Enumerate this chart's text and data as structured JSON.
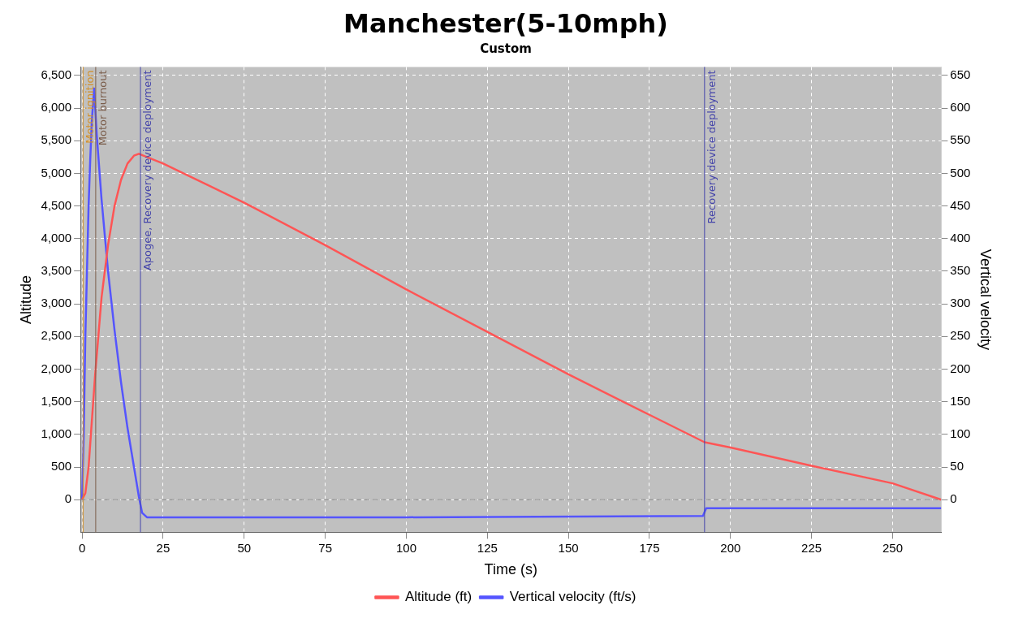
{
  "chart_data": {
    "type": "line",
    "title": "Manchester(5-10mph)",
    "subtitle": "Custom",
    "xlabel": "Time (s)",
    "ylabel": "Altitude",
    "y2label": "Vertical velocity",
    "xlim": [
      -0.5,
      265
    ],
    "xticks": [
      0,
      25,
      50,
      75,
      100,
      125,
      150,
      175,
      200,
      225,
      250
    ],
    "ylim": [
      -500,
      6630
    ],
    "yticks": [
      0,
      500,
      {
        "value": 1000,
        "label": "1,000"
      },
      {
        "value": 1500,
        "label": "1,500"
      },
      {
        "value": 2000,
        "label": "2,000"
      },
      {
        "value": 2500,
        "label": "2,500"
      },
      {
        "value": 3000,
        "label": "3,000"
      },
      {
        "value": 3500,
        "label": "3,500"
      },
      {
        "value": 4000,
        "label": "4,000"
      },
      {
        "value": 4500,
        "label": "4,500"
      },
      {
        "value": 5000,
        "label": "5,000"
      },
      {
        "value": 5500,
        "label": "5,500"
      },
      {
        "value": 6000,
        "label": "6,000"
      },
      {
        "value": 6500,
        "label": "6,500"
      }
    ],
    "y2lim": [
      -50,
      663
    ],
    "y2ticks": [
      0,
      50,
      100,
      150,
      200,
      250,
      300,
      350,
      400,
      450,
      500,
      550,
      600,
      650
    ],
    "grid": true,
    "legend": "bottom",
    "marker": "none",
    "line_style": "solid",
    "series": [
      {
        "name": "Altitude (ft)",
        "color": "#ff5555",
        "x": [
          0,
          1,
          2,
          3,
          4,
          5,
          6,
          8,
          10,
          12,
          14,
          16,
          17.5,
          25,
          50,
          75,
          100,
          125,
          150,
          175,
          192,
          200,
          225,
          250,
          265
        ],
        "values": [
          0,
          100,
          500,
          1200,
          1900,
          2500,
          3100,
          3900,
          4500,
          4900,
          5150,
          5270,
          5300,
          5150,
          4550,
          3900,
          3220,
          2570,
          1920,
          1300,
          880,
          800,
          520,
          250,
          0
        ]
      },
      {
        "name": "Vertical velocity (ft/s)",
        "color": "#5555ff",
        "axis": "y2",
        "x": [
          0,
          0.5,
          1,
          1.5,
          2,
          2.5,
          3,
          3.7,
          4.5,
          6,
          8,
          10,
          12,
          14,
          16,
          17.5,
          18.5,
          20,
          100,
          191.5,
          192.5,
          265
        ],
        "values": [
          0,
          100,
          250,
          350,
          450,
          520,
          580,
          630,
          560,
          460,
          350,
          260,
          180,
          110,
          50,
          5,
          -20,
          -27,
          -27,
          -25,
          -13,
          -13
        ]
      }
    ],
    "ref_lines": [
      {
        "axis": "x",
        "value": 0.3,
        "label": "Motor ignition",
        "color": "#d2902a"
      },
      {
        "axis": "x",
        "value": 4.2,
        "label": "Motor burnout",
        "color": "#7a5c4a"
      },
      {
        "axis": "x",
        "value": 18,
        "label": "Apogee, Recovery device deployment",
        "color": "#4444aa"
      },
      {
        "axis": "x",
        "value": 192,
        "label": "Recovery device deployment",
        "color": "#4444aa"
      },
      {
        "axis": "y",
        "value": 0,
        "color": "#888888",
        "line_style": "dashed"
      }
    ]
  }
}
